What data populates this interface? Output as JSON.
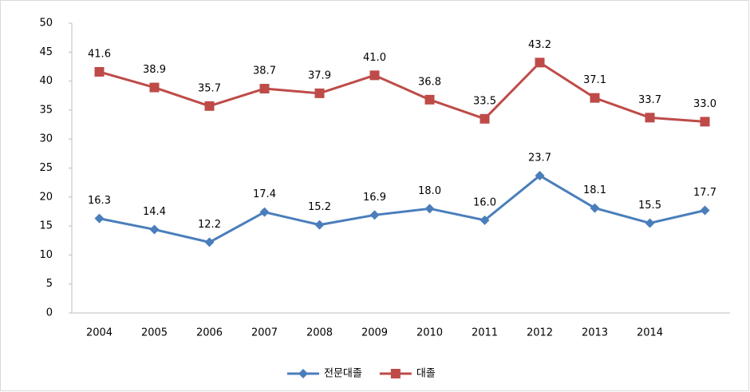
{
  "chart_data": {
    "type": "line",
    "categories": [
      "2004",
      "2005",
      "2006",
      "2007",
      "2008",
      "2009",
      "2010",
      "2011",
      "2012",
      "2013",
      "2014",
      null
    ],
    "series": [
      {
        "name": "전문대졸",
        "color": "#4a7ebb",
        "marker": "diamond",
        "values": [
          16.3,
          14.4,
          12.2,
          17.4,
          15.2,
          16.9,
          18,
          16,
          23.7,
          18.1,
          15.5,
          17.7
        ],
        "value_labels": [
          "16.3",
          "14.4",
          "12.2",
          "17.4",
          "15.2",
          "16.9",
          "18.0",
          "16.0",
          "23.7",
          "18.1",
          "15.5",
          "17.7"
        ]
      },
      {
        "name": "대졸",
        "color": "#be4b48",
        "marker": "square",
        "values": [
          41.6,
          38.9,
          35.7,
          38.7,
          37.9,
          41,
          36.8,
          33.5,
          43.2,
          37.1,
          33.7,
          33
        ],
        "value_labels": [
          "41.6",
          "38.9",
          "35.7",
          "38.7",
          "37.9",
          "41.0",
          "36.8",
          "33.5",
          "43.2",
          "37.1",
          "33.7",
          "33.0"
        ]
      }
    ],
    "ylim": [
      0,
      50
    ],
    "yticks": [
      0,
      5,
      10,
      15,
      20,
      25,
      30,
      35,
      40,
      45,
      50
    ],
    "grid": false,
    "legend": "bottom"
  }
}
